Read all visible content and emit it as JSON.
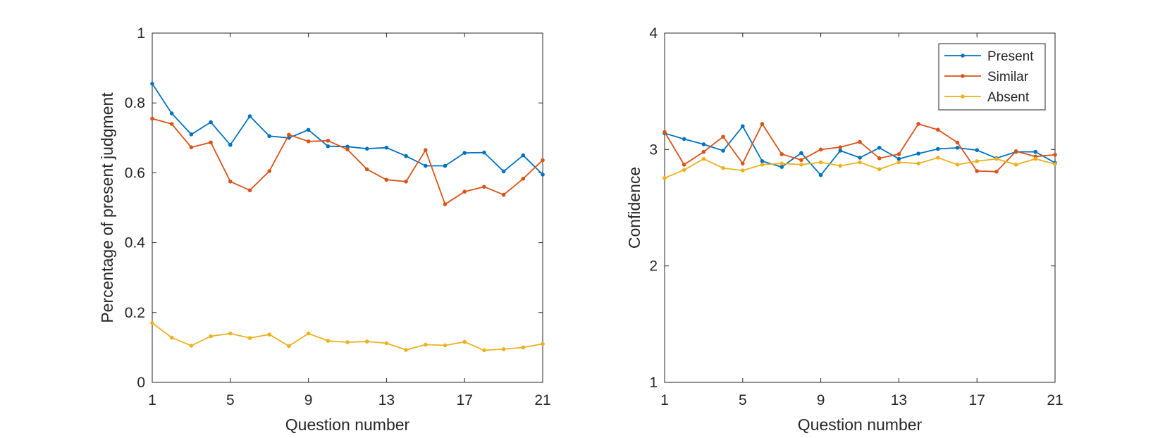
{
  "chart_data": [
    {
      "type": "line",
      "xlabel": "Question number",
      "ylabel": "Percentage of present judgment",
      "xlim": [
        1,
        21
      ],
      "ylim": [
        0,
        1
      ],
      "xticks": [
        1,
        5,
        9,
        13,
        17,
        21
      ],
      "yticks": [
        0,
        0.2,
        0.4,
        0.6,
        0.8,
        1
      ],
      "ytick_labels": [
        "0",
        "0.2",
        "0.4",
        "0.6",
        "0.8",
        "1"
      ],
      "grid": false,
      "x": [
        1,
        2,
        3,
        4,
        5,
        6,
        7,
        8,
        9,
        10,
        11,
        12,
        13,
        14,
        15,
        16,
        17,
        18,
        19,
        20,
        21
      ],
      "series": [
        {
          "color": "#0072BD",
          "values": [
            0.855,
            0.77,
            0.71,
            0.745,
            0.68,
            0.762,
            0.705,
            0.7,
            0.723,
            0.676,
            0.675,
            0.669,
            0.672,
            0.648,
            0.62,
            0.62,
            0.657,
            0.658,
            0.604,
            0.65,
            0.595
          ]
        },
        {
          "color": "#D95319",
          "values": [
            0.755,
            0.74,
            0.673,
            0.687,
            0.575,
            0.55,
            0.605,
            0.709,
            0.69,
            0.692,
            0.667,
            0.61,
            0.58,
            0.575,
            0.665,
            0.51,
            0.546,
            0.56,
            0.537,
            0.583,
            0.636
          ]
        },
        {
          "color": "#EDB120",
          "values": [
            0.17,
            0.128,
            0.105,
            0.132,
            0.14,
            0.127,
            0.137,
            0.104,
            0.14,
            0.119,
            0.115,
            0.117,
            0.112,
            0.093,
            0.108,
            0.106,
            0.116,
            0.092,
            0.095,
            0.1,
            0.11
          ]
        }
      ]
    },
    {
      "type": "line",
      "xlabel": "Question number",
      "ylabel": "Confidence",
      "xlim": [
        1,
        21
      ],
      "ylim": [
        1,
        4
      ],
      "xticks": [
        1,
        5,
        9,
        13,
        17,
        21
      ],
      "yticks": [
        1,
        2,
        3,
        4
      ],
      "ytick_labels": [
        "1",
        "2",
        "3",
        "4"
      ],
      "grid": false,
      "legend": "top-right",
      "x": [
        1,
        2,
        3,
        4,
        5,
        6,
        7,
        8,
        9,
        10,
        11,
        12,
        13,
        14,
        15,
        16,
        17,
        18,
        19,
        20,
        21
      ],
      "series": [
        {
          "name": "Present",
          "color": "#0072BD",
          "values": [
            3.14,
            3.09,
            3.045,
            2.99,
            3.2,
            2.9,
            2.85,
            2.97,
            2.78,
            2.99,
            2.93,
            3.015,
            2.92,
            2.965,
            3.005,
            3.015,
            2.995,
            2.925,
            2.98,
            2.98,
            2.885
          ]
        },
        {
          "name": "Similar",
          "color": "#D95319",
          "values": [
            3.15,
            2.87,
            2.98,
            3.11,
            2.88,
            3.22,
            2.96,
            2.91,
            3.0,
            3.02,
            3.065,
            2.925,
            2.96,
            3.22,
            3.17,
            3.06,
            2.815,
            2.81,
            2.985,
            2.94,
            2.955
          ]
        },
        {
          "name": "Absent",
          "color": "#EDB120",
          "values": [
            2.755,
            2.825,
            2.92,
            2.84,
            2.82,
            2.87,
            2.88,
            2.87,
            2.89,
            2.86,
            2.89,
            2.83,
            2.89,
            2.88,
            2.93,
            2.87,
            2.9,
            2.92,
            2.87,
            2.92,
            2.875
          ]
        }
      ]
    }
  ]
}
